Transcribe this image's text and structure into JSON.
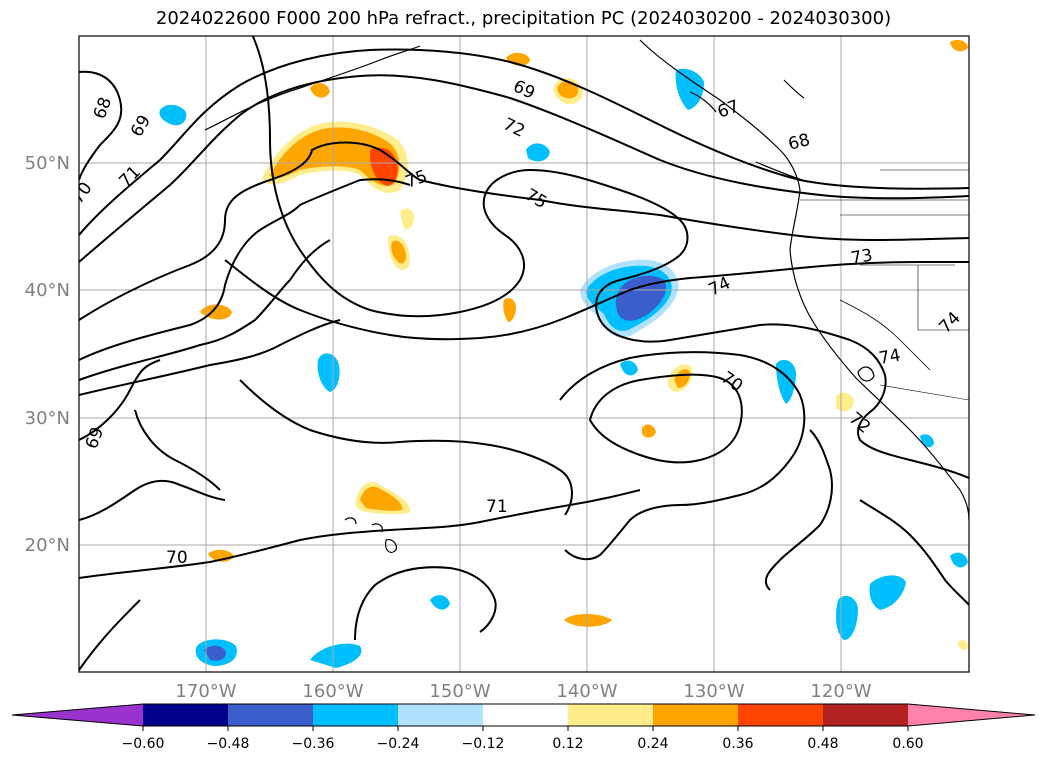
{
  "title": "2024022600 F000 200 hPa refract., precipitation PC (2024030200 - 2024030300)",
  "map": {
    "lon_ticks": [
      "170°W",
      "160°W",
      "150°W",
      "140°W",
      "130°W",
      "120°W"
    ],
    "lat_ticks": [
      "50°N",
      "40°N",
      "30°N",
      "20°N"
    ],
    "grid": true,
    "axis_label_color": "#808080",
    "contour_labels": [
      {
        "text": "68"
      },
      {
        "text": "69"
      },
      {
        "text": "70"
      },
      {
        "text": "71"
      },
      {
        "text": "75"
      },
      {
        "text": "69"
      },
      {
        "text": "72"
      },
      {
        "text": "67"
      },
      {
        "text": "68"
      },
      {
        "text": "75"
      },
      {
        "text": "73"
      },
      {
        "text": "74"
      },
      {
        "text": "74"
      },
      {
        "text": "74"
      },
      {
        "text": "70"
      },
      {
        "text": "72"
      },
      {
        "text": "69"
      },
      {
        "text": "71"
      },
      {
        "text": "70"
      }
    ]
  },
  "colorbar": {
    "colors": [
      "#9a32cd",
      "#00008b",
      "#3a5fcd",
      "#00bfff",
      "#b0e2ff",
      "#ffffff",
      "#ffec8b",
      "#ffa500",
      "#ff4500",
      "#b22222",
      "#ff82ab"
    ],
    "tick_labels": [
      "−0.60",
      "−0.48",
      "−0.36",
      "−0.24",
      "−0.12",
      "0.12",
      "0.24",
      "0.36",
      "0.48",
      "0.60"
    ]
  }
}
